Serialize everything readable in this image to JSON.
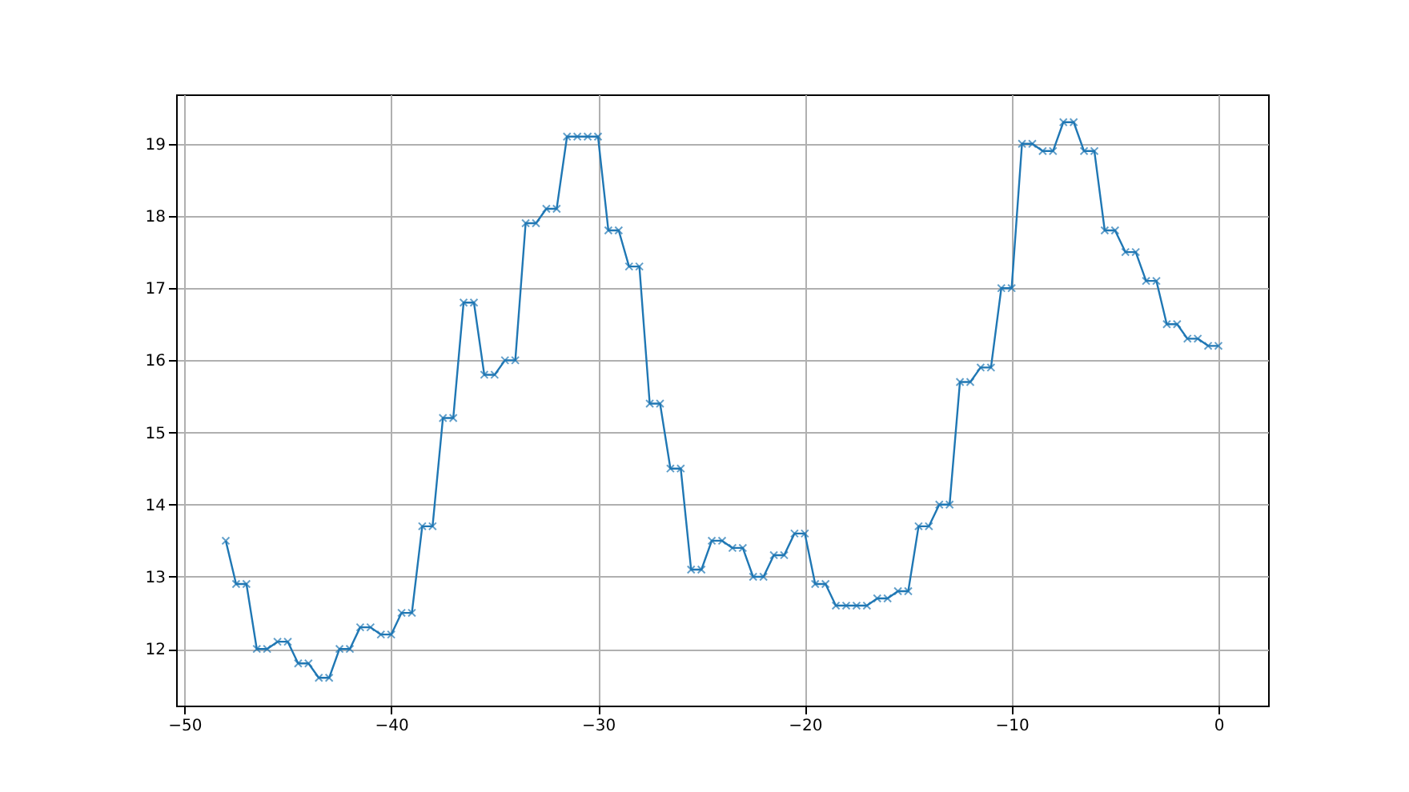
{
  "chart_data": {
    "type": "line",
    "x": [
      -48,
      -47.5,
      -47,
      -46.5,
      -46,
      -45.5,
      -45,
      -44.5,
      -44,
      -43.5,
      -43,
      -42.5,
      -42,
      -41.5,
      -41,
      -40.5,
      -40,
      -39.5,
      -39,
      -38.5,
      -38,
      -37.5,
      -37,
      -36.5,
      -36,
      -35.5,
      -35,
      -34.5,
      -34,
      -33.5,
      -33,
      -32.5,
      -32,
      -31.5,
      -31,
      -30.5,
      -30,
      -29.5,
      -29,
      -28.5,
      -28,
      -27.5,
      -27,
      -26.5,
      -26,
      -25.5,
      -25,
      -24.5,
      -24,
      -23.5,
      -23,
      -22.5,
      -22,
      -21.5,
      -21,
      -20.5,
      -20,
      -19.5,
      -19,
      -18.5,
      -18,
      -17.5,
      -17,
      -16.5,
      -16,
      -15.5,
      -15,
      -14.5,
      -14,
      -13.5,
      -13,
      -12.5,
      -12,
      -11.5,
      -11,
      -10.5,
      -10,
      -9.5,
      -9,
      -8.5,
      -8,
      -7.5,
      -7,
      -6.5,
      -6,
      -5.5,
      -5,
      -4.5,
      -4,
      -3.5,
      -3,
      -2.5,
      -2,
      -1.5,
      -1,
      -0.5,
      0
    ],
    "series": [
      {
        "color": "#1f77b4",
        "values": [
          13.5,
          12.9,
          12.9,
          12.0,
          12.0,
          12.1,
          12.1,
          11.8,
          11.8,
          11.6,
          11.6,
          12.0,
          12.0,
          12.3,
          12.3,
          12.2,
          12.2,
          12.5,
          12.5,
          13.7,
          13.7,
          15.2,
          15.2,
          16.8,
          16.8,
          15.8,
          15.8,
          16.0,
          16.0,
          17.9,
          17.9,
          18.1,
          18.1,
          19.1,
          19.1,
          19.1,
          19.1,
          17.8,
          17.8,
          17.3,
          17.3,
          15.4,
          15.4,
          14.5,
          14.5,
          13.1,
          13.1,
          13.5,
          13.5,
          13.4,
          13.4,
          13.0,
          13.0,
          13.3,
          13.3,
          13.6,
          13.6,
          12.9,
          12.9,
          12.6,
          12.6,
          12.6,
          12.6,
          12.7,
          12.7,
          12.8,
          12.8,
          13.7,
          13.7,
          14.0,
          14.0,
          15.7,
          15.7,
          15.9,
          15.9,
          17.0,
          17.0,
          19.0,
          19.0,
          18.9,
          18.9,
          19.3,
          19.3,
          18.9,
          18.9,
          17.8,
          17.8,
          17.5,
          17.5,
          17.1,
          17.1,
          16.5,
          16.5,
          16.3,
          16.3,
          16.2,
          16.2
        ]
      }
    ],
    "xlim": [
      -50.4,
      2.4
    ],
    "xticks": [
      -50,
      -40,
      -30,
      -20,
      -10,
      0
    ],
    "ylim": [
      11.215,
      19.685
    ],
    "yticks": [
      12,
      13,
      14,
      15,
      16,
      17,
      18,
      19
    ],
    "grid": true,
    "marker": "cross",
    "line_style": "solid"
  }
}
